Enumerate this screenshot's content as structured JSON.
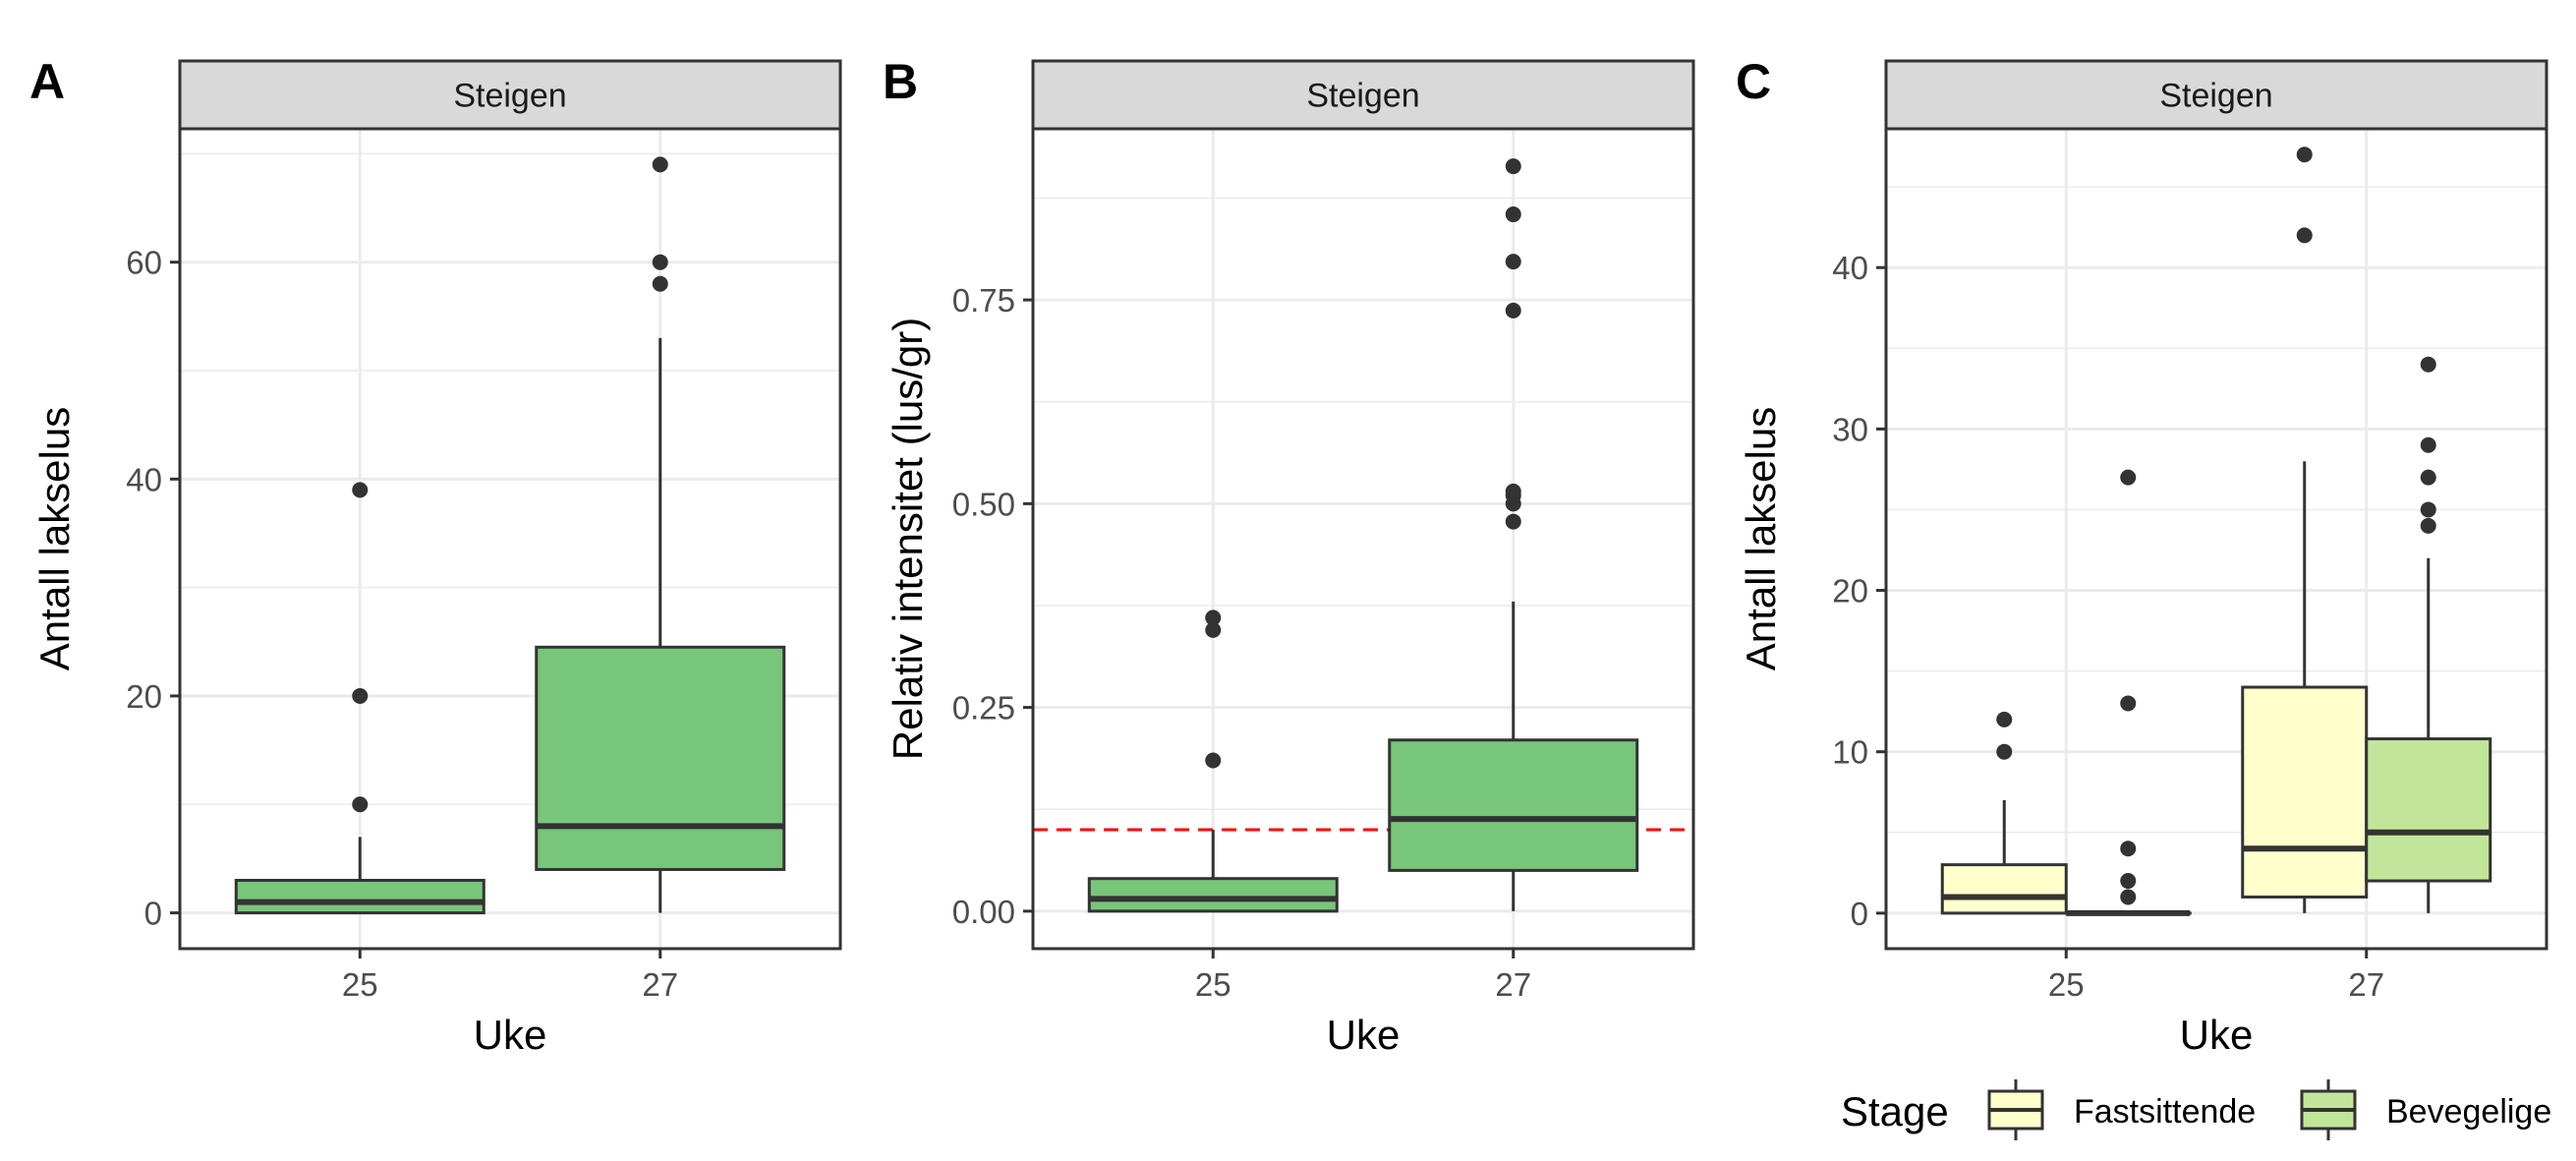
{
  "colors": {
    "green_fill": "#78c679",
    "fastsittende_fill": "#ffffcc",
    "bevegelige_fill": "#c2e699",
    "threshold_line": "#ff0000",
    "grid": "#ebebeb",
    "strip_bg": "#d9d9d9",
    "ink": "#333333"
  },
  "legend": {
    "title": "Stage",
    "items": [
      {
        "label": "Fastsittende",
        "color": "#ffffcc"
      },
      {
        "label": "Bevegelige",
        "color": "#c2e699"
      }
    ]
  },
  "chart_data": [
    {
      "tag": "A",
      "type": "box",
      "strip": "Steigen",
      "xlabel": "Uke",
      "ylabel": "Antall lakselus",
      "categories": [
        "25",
        "27"
      ],
      "ylim": [
        -3.3,
        72.3
      ],
      "yticks": [
        0,
        20,
        40,
        60
      ],
      "grid": true,
      "series": [
        {
          "color": "#78c679",
          "boxes": [
            {
              "category": "25",
              "min": 0,
              "q1": 0,
              "median": 1,
              "q3": 3,
              "max": 7,
              "outliers": [
                10,
                20,
                39
              ]
            },
            {
              "category": "27",
              "min": 0,
              "q1": 4,
              "median": 8,
              "q3": 24.5,
              "max": 53,
              "outliers": [
                58,
                60,
                69
              ]
            }
          ]
        }
      ]
    },
    {
      "tag": "B",
      "type": "box",
      "strip": "Steigen",
      "xlabel": "Uke",
      "ylabel": "Relativ intensitet (lus/gr)",
      "categories": [
        "25",
        "27"
      ],
      "ylim": [
        -0.046,
        0.96
      ],
      "yticks": [
        0.0,
        0.25,
        0.5,
        0.75
      ],
      "ytick_labels": [
        "0.00",
        "0.25",
        "0.50",
        "0.75"
      ],
      "grid": true,
      "hline": 0.1,
      "series": [
        {
          "color": "#78c679",
          "boxes": [
            {
              "category": "25",
              "min": 0,
              "q1": 0,
              "median": 0.015,
              "q3": 0.04,
              "max": 0.1,
              "outliers": [
                0.185,
                0.345,
                0.36
              ]
            },
            {
              "category": "27",
              "min": 0,
              "q1": 0.05,
              "median": 0.113,
              "q3": 0.21,
              "max": 0.38,
              "outliers": [
                0.478,
                0.5,
                0.51,
                0.515,
                0.737,
                0.797,
                0.855,
                0.914
              ]
            }
          ]
        }
      ]
    },
    {
      "tag": "C",
      "type": "box",
      "strip": "Steigen",
      "xlabel": "Uke",
      "ylabel": "Antall lakselus",
      "categories": [
        "25",
        "27"
      ],
      "ylim": [
        -2.2,
        48.6
      ],
      "yticks": [
        0,
        10,
        20,
        30,
        40
      ],
      "grid": true,
      "series": [
        {
          "name": "Fastsittende",
          "color": "#ffffcc",
          "boxes": [
            {
              "category": "25",
              "min": 0,
              "q1": 0,
              "median": 1,
              "q3": 3,
              "max": 7,
              "outliers": [
                10,
                12
              ]
            },
            {
              "category": "27",
              "min": 0,
              "q1": 1,
              "median": 4,
              "q3": 14,
              "max": 28,
              "outliers": [
                42,
                47
              ]
            }
          ]
        },
        {
          "name": "Bevegelige",
          "color": "#c2e699",
          "boxes": [
            {
              "category": "25",
              "min": 0,
              "q1": 0,
              "median": 0,
              "q3": 0,
              "max": 0,
              "outliers": [
                1,
                2,
                4,
                13,
                27
              ]
            },
            {
              "category": "27",
              "min": 0,
              "q1": 2,
              "median": 5,
              "q3": 10.8,
              "max": 22,
              "outliers": [
                24,
                25,
                27,
                29,
                34
              ]
            }
          ]
        }
      ]
    }
  ]
}
